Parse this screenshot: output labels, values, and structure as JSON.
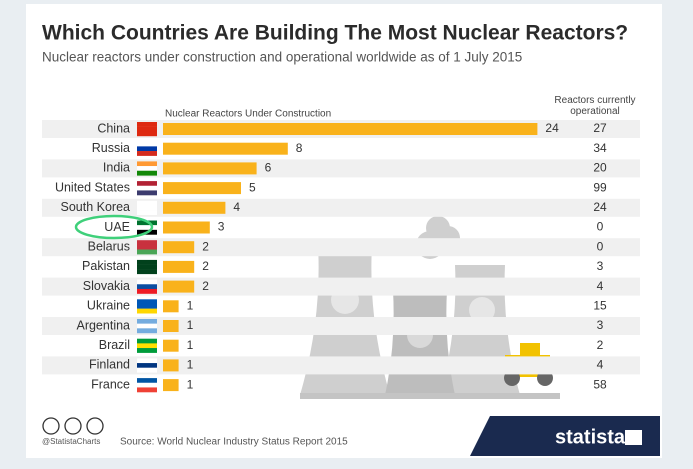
{
  "chart_data": {
    "type": "bar",
    "title": "Which Countries Are Building The Most Nuclear Reactors?",
    "subtitle": "Nuclear reactors under construction and operational worldwide as of 1 July 2015",
    "value_header": "Nuclear Reactors Under Construction",
    "categories": [
      "China",
      "Russia",
      "India",
      "United States",
      "South Korea",
      "UAE",
      "Belarus",
      "Pakistan",
      "Slovakia",
      "Ukraine",
      "Argentina",
      "Brazil",
      "Finland",
      "France"
    ],
    "values": [
      24,
      8,
      6,
      5,
      4,
      3,
      2,
      2,
      2,
      1,
      1,
      1,
      1,
      1
    ],
    "color": "#f9b21b",
    "operational": {
      "name": "Reactors currently operational",
      "values": [
        27,
        34,
        20,
        99,
        24,
        0,
        0,
        3,
        4,
        15,
        3,
        2,
        4,
        58
      ]
    },
    "credit": "@StatistaCharts",
    "source": "Source: World Nuclear Industry Status Report 2015",
    "brand": "statista"
  }
}
